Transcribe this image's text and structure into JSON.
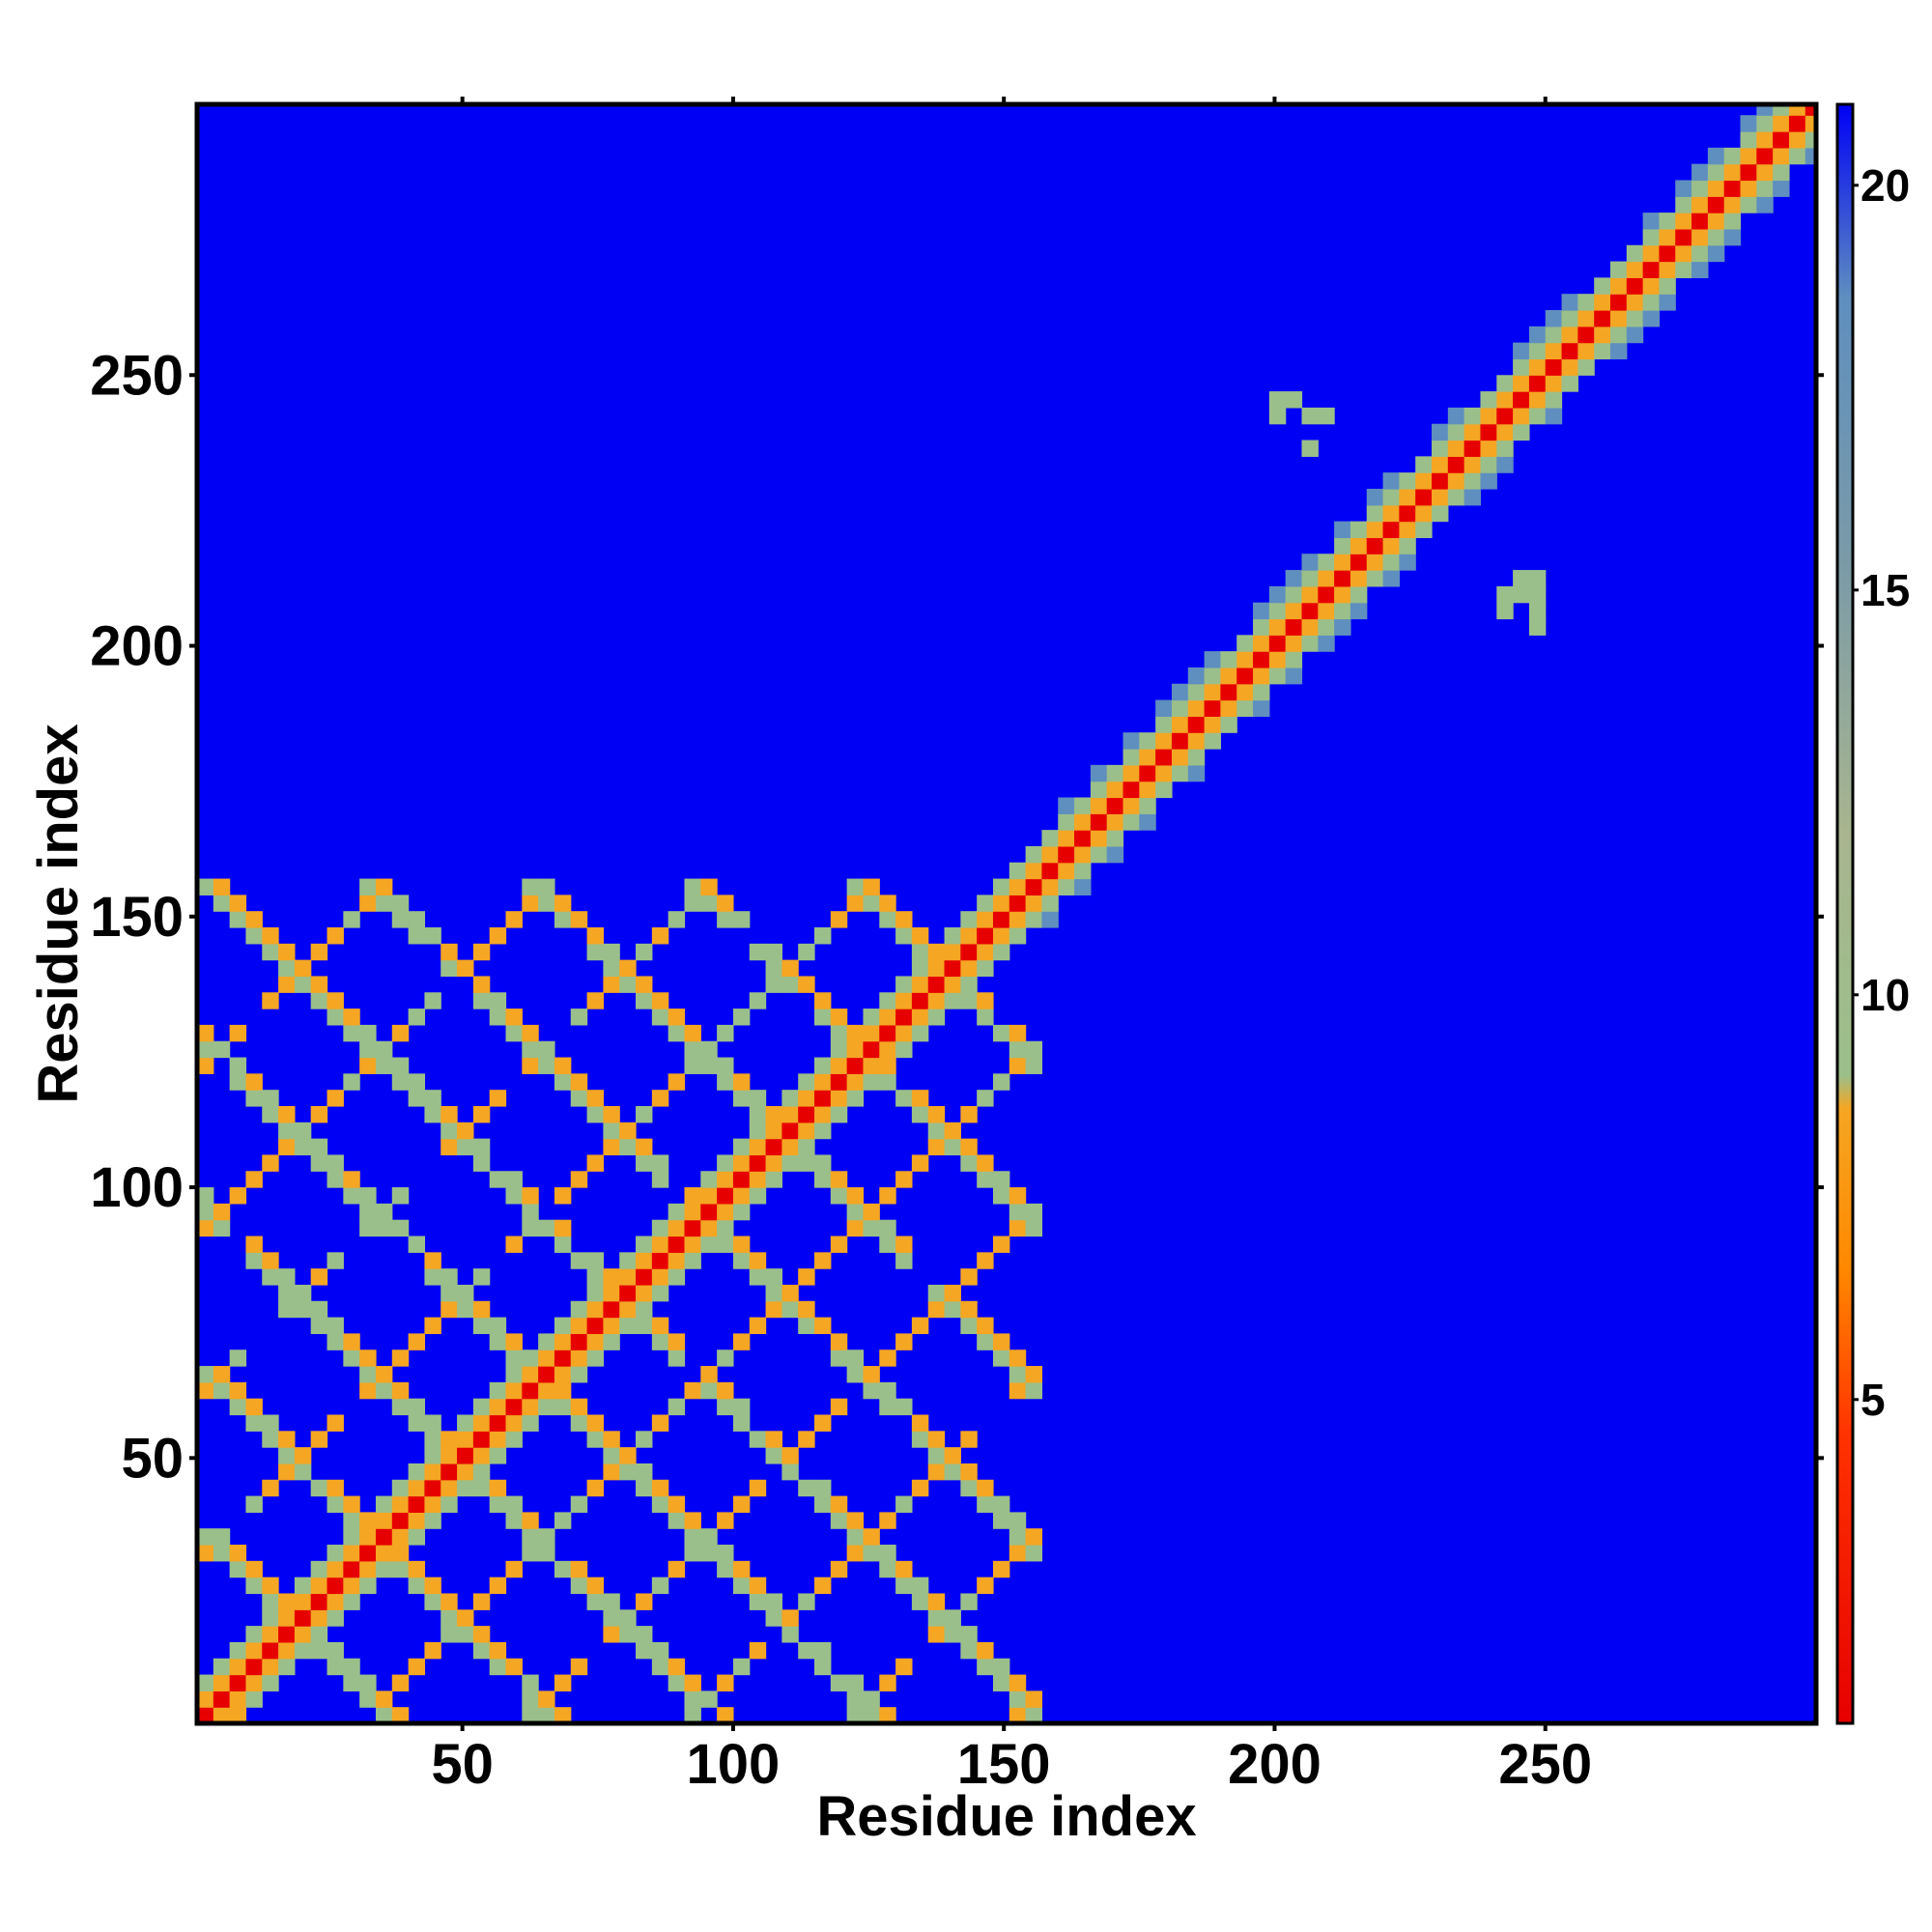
{
  "chart_data": {
    "type": "heatmap",
    "title": "",
    "xlabel": "Residue index",
    "ylabel": "Residue index",
    "xlim": [
      1,
      300
    ],
    "ylim": [
      1,
      300
    ],
    "x_ticks": [
      50,
      100,
      150,
      200,
      250
    ],
    "y_ticks": [
      50,
      100,
      150,
      200,
      250
    ],
    "colorbar": {
      "ticks": [
        5,
        10,
        15,
        20
      ],
      "range": [
        1,
        21
      ],
      "colors": {
        "low": "#e60000",
        "mid_low": "#ff8800",
        "mid": "#f5a623",
        "band": "#9bbf8a",
        "high": "#5f8fbf",
        "background": "#0000f5"
      }
    },
    "description_features": {
      "diagonal": "contact band along main diagonal from residue 1 to 300",
      "block": "periodic cross-hatched contact pattern in residues 1-155",
      "offdiag_blobs_upper": [
        [
          203,
          240
        ],
        [
          245,
          206
        ]
      ]
    }
  }
}
